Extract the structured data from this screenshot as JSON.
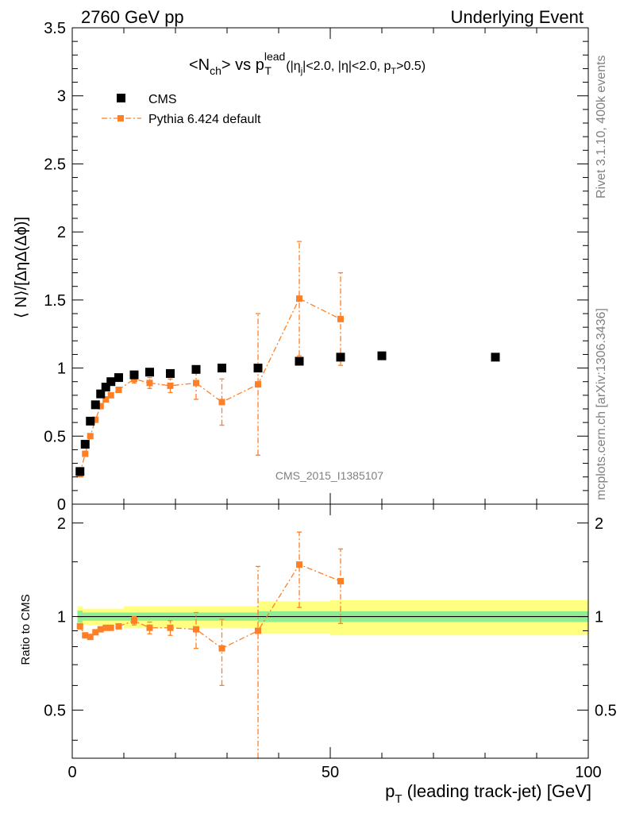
{
  "header": {
    "left": "2760 GeV pp",
    "right": "Underlying Event"
  },
  "side_labels": {
    "rivet": "Rivet 3.1.10,  400k events",
    "mcplots": "mcplots.cern.ch [arXiv:1306.3436]"
  },
  "analysis_id": "CMS_2015_I1385107",
  "chart_data": [
    {
      "type": "scatter",
      "title": {
        "base": "<N",
        "sub1": "ch",
        "mid": "> vs p",
        "sup": "lead",
        "sub2": "T",
        "cut_a": " (|η",
        "cut_a_sub": "j",
        "cut_b": "|<2.0, |η|<2.0, p",
        "cut_b_sub": "T",
        "cut_c": ">0.5)"
      },
      "ylabel": "⟨ N⟩/[ΔηΔ(Δϕ)]",
      "xlim": [
        0,
        100
      ],
      "ylim": [
        0,
        3.5
      ],
      "yticks": [
        0,
        0.5,
        1,
        1.5,
        2,
        2.5,
        3,
        3.5
      ],
      "ytick_labels": [
        "0",
        "0.5",
        "1",
        "1.5",
        "2",
        "2.5",
        "3",
        "3.5"
      ],
      "legend_position": "top-left",
      "series": [
        {
          "name": "CMS",
          "color": "#000000",
          "marker": "square",
          "x": [
            1.5,
            2.5,
            3.5,
            4.5,
            5.5,
            6.5,
            7.5,
            9,
            12,
            15,
            19,
            24,
            29,
            36,
            44,
            52,
            60,
            82
          ],
          "y": [
            0.24,
            0.44,
            0.61,
            0.73,
            0.81,
            0.86,
            0.9,
            0.93,
            0.95,
            0.97,
            0.96,
            0.99,
            1.0,
            1.0,
            1.05,
            1.08,
            1.09,
            1.08
          ]
        },
        {
          "name": "Pythia 6.424 default",
          "color": "#ff7f27",
          "marker": "square",
          "line": "dashdot",
          "x": [
            1.5,
            2.5,
            3.5,
            4.5,
            5.5,
            6.5,
            7.5,
            9,
            12,
            15,
            19,
            24,
            29,
            36,
            44,
            52
          ],
          "y": [
            0.22,
            0.37,
            0.5,
            0.62,
            0.72,
            0.77,
            0.8,
            0.84,
            0.92,
            0.89,
            0.87,
            0.89,
            0.75,
            0.88,
            1.51,
            1.36
          ],
          "yerr": [
            0.01,
            0.01,
            0.01,
            0.01,
            0.01,
            0.01,
            0.01,
            0.02,
            0.03,
            0.04,
            0.05,
            0.12,
            0.17,
            0.52,
            0.42,
            0.34
          ]
        }
      ]
    },
    {
      "type": "scatter",
      "xlabel": {
        "p": "p",
        "sub": "T",
        "rest": " (leading track-jet) [GeV]"
      },
      "ylabel": "Ratio to CMS",
      "xlim": [
        0,
        100
      ],
      "ylim": [
        0.35,
        2.3
      ],
      "log_y": true,
      "xticks": [
        0,
        50,
        100
      ],
      "xtick_labels": [
        "0",
        "50",
        "100"
      ],
      "yticks": [
        0.5,
        1,
        2
      ],
      "ytick_labels": [
        "0.5",
        "1",
        "2"
      ],
      "reference": 1.0,
      "bands": {
        "stat_color": "#90ee90",
        "total_color": "#ffff80",
        "x": [
          1,
          2,
          4,
          10,
          20,
          36,
          50,
          100
        ],
        "stat": [
          0.045,
          0.03,
          0.03,
          0.03,
          0.03,
          0.04,
          0.04,
          0.04
        ],
        "total": [
          0.08,
          0.06,
          0.06,
          0.08,
          0.08,
          0.12,
          0.13,
          0.13
        ]
      },
      "series": [
        {
          "name": "Pythia 6.424 default",
          "color": "#ff7f27",
          "x": [
            1.5,
            2.5,
            3.5,
            4.5,
            5.5,
            6.5,
            7.5,
            9,
            12,
            15,
            19,
            24,
            29,
            36,
            44,
            52
          ],
          "y": [
            0.93,
            0.87,
            0.86,
            0.89,
            0.91,
            0.92,
            0.92,
            0.93,
            0.97,
            0.92,
            0.92,
            0.91,
            0.79,
            0.9,
            1.47,
            1.3
          ],
          "yerr": [
            0.01,
            0.01,
            0.01,
            0.01,
            0.01,
            0.01,
            0.01,
            0.02,
            0.03,
            0.04,
            0.05,
            0.12,
            0.19,
            0.55,
            0.4,
            0.35
          ]
        }
      ]
    }
  ]
}
